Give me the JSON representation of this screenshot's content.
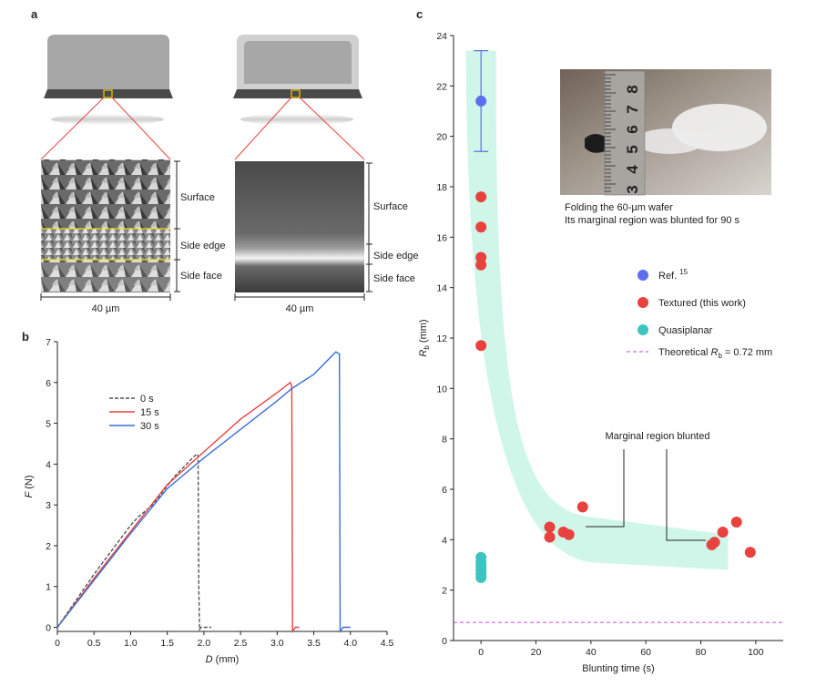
{
  "panel_a": {
    "letter": "a",
    "labels": {
      "surface": "Surface",
      "side_edge": "Side edge",
      "side_face": "Side face"
    },
    "scale": "40 µm",
    "colors": {
      "zoom_line": "#e8423e",
      "marker": "#e8c400",
      "boundary": "#f0e020"
    }
  },
  "panel_b": {
    "letter": "b"
  },
  "panel_c": {
    "letter": "c",
    "inset_caption": [
      "Folding the 60-µm wafer",
      "Its marginal region was blunted for 90 s"
    ],
    "inset_ruler": [
      "3",
      "4",
      "5",
      "6",
      "7",
      "8"
    ],
    "annotation": "Marginal region blunted",
    "band_color": "#c8f5e6"
  },
  "chart_data": [
    {
      "type": "line",
      "xlabel": "D (mm)",
      "ylabel": "F (N)",
      "xlim": [
        0,
        4.5
      ],
      "ylim": [
        -0.1,
        7
      ],
      "xticks": [
        "0",
        "0.5",
        "1.0",
        "1.5",
        "2.0",
        "2.5",
        "3.0",
        "3.5",
        "4.0",
        "4.5"
      ],
      "yticks": [
        "0",
        "1",
        "2",
        "3",
        "4",
        "5",
        "6",
        "7"
      ],
      "legend_position": "upper-left",
      "series": [
        {
          "name": "0 s",
          "color": "#555555",
          "dashed": true,
          "x": [
            0,
            0.5,
            1.0,
            1.1,
            1.3,
            1.6,
            1.9,
            1.92,
            1.93,
            1.94,
            1.96,
            2.0,
            2.05,
            2.1
          ],
          "y": [
            0,
            1.3,
            2.5,
            2.7,
            3.0,
            3.7,
            4.25,
            4.2,
            1.0,
            -0.05,
            0.0,
            0.0,
            0.0,
            0.0
          ]
        },
        {
          "name": "15 s",
          "color": "#e8423e",
          "x": [
            0,
            0.5,
            1.0,
            1.5,
            2.0,
            2.5,
            3.0,
            3.18,
            3.2,
            3.21,
            3.25,
            3.3
          ],
          "y": [
            0,
            1.2,
            2.35,
            3.5,
            4.3,
            5.1,
            5.75,
            6.0,
            5.9,
            -0.1,
            0.0,
            0.0
          ]
        },
        {
          "name": "30 s",
          "color": "#3a6fd8",
          "x": [
            0,
            0.5,
            1.0,
            1.5,
            2.0,
            2.5,
            3.0,
            3.2,
            3.5,
            3.8,
            3.85,
            3.86,
            3.9,
            4.0
          ],
          "y": [
            0,
            1.15,
            2.3,
            3.4,
            4.15,
            4.85,
            5.55,
            5.85,
            6.2,
            6.75,
            6.7,
            -0.1,
            0.0,
            0.0
          ]
        }
      ]
    },
    {
      "type": "scatter",
      "xlabel": "Blunting time (s)",
      "ylabel": "Rb (mm)",
      "ylabel_main": "R",
      "ylabel_sub": "b",
      "xlim": [
        -10,
        110
      ],
      "ylim": [
        0,
        24
      ],
      "xticks": [
        "0",
        "20",
        "40",
        "60",
        "80",
        "100"
      ],
      "yticks": [
        "0",
        "2",
        "4",
        "6",
        "8",
        "10",
        "12",
        "14",
        "16",
        "18",
        "20",
        "22",
        "24"
      ],
      "legend_position": "right",
      "series": [
        {
          "name": "Ref. 15",
          "name_main": "Ref.",
          "name_sup": "15",
          "color": "#5b6ff0",
          "x": [
            0
          ],
          "y": [
            21.4
          ],
          "yerr": [
            [
              19.4,
              23.4
            ]
          ]
        },
        {
          "name": "Textured (this work)",
          "color": "#e8423e",
          "x": [
            0,
            0,
            0,
            0,
            0,
            25,
            25,
            30,
            32,
            37,
            84,
            85,
            88,
            93,
            98
          ],
          "y": [
            17.6,
            16.4,
            15.2,
            14.9,
            11.7,
            4.5,
            4.1,
            4.3,
            4.2,
            5.3,
            3.8,
            3.9,
            4.3,
            4.7,
            3.5
          ]
        },
        {
          "name": "Quasiplanar",
          "color": "#3cc4c0",
          "x": [
            0,
            0,
            0,
            0,
            0,
            0
          ],
          "y": [
            3.3,
            3.1,
            2.95,
            2.8,
            2.65,
            2.5
          ]
        }
      ],
      "reference_line": {
        "label": "Theoretical Rb = 0.72 mm",
        "label_pre": "Theoretical",
        "label_main": "R",
        "label_sub": "b",
        "label_post": " = 0.72 mm",
        "y": 0.72,
        "color": "#c847e0"
      }
    }
  ]
}
